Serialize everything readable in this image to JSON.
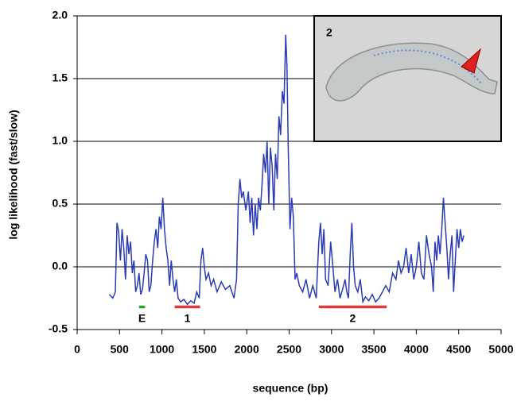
{
  "chart_data": {
    "type": "line",
    "xlabel": "sequence (bp)",
    "ylabel": "log likelihood (fast/slow)",
    "xlim": [
      0,
      5000
    ],
    "ylim": [
      -0.5,
      2.0
    ],
    "xticks": [
      0,
      500,
      1000,
      1500,
      2000,
      2500,
      3000,
      3500,
      4000,
      4500,
      5000
    ],
    "yticks": [
      {
        "value": -0.5,
        "label": "-0.5"
      },
      {
        "value": 0,
        "label": "0.0"
      },
      {
        "value": 0.5,
        "label": "0.5"
      },
      {
        "value": 1,
        "label": "1.0"
      },
      {
        "value": 1.5,
        "label": "1.5"
      },
      {
        "value": 2,
        "label": "2.0"
      }
    ],
    "grid": true,
    "inset_label": "2",
    "annotations": [
      {
        "label": "E",
        "x": [
          730,
          800
        ],
        "y": -0.32,
        "color": "#22aa22"
      },
      {
        "label": "1",
        "x": [
          1150,
          1450
        ],
        "y": -0.32,
        "color": "#e03a3a"
      },
      {
        "label": "2",
        "x": [
          2850,
          3650
        ],
        "y": -0.32,
        "color": "#e03a3a"
      }
    ],
    "series": [
      {
        "color": "#2b3bb5",
        "x": [
          380,
          420,
          450,
          470,
          490,
          510,
          530,
          550,
          570,
          590,
          610,
          630,
          650,
          670,
          690,
          710,
          730,
          750,
          770,
          790,
          810,
          830,
          850,
          870,
          890,
          910,
          930,
          950,
          970,
          990,
          1010,
          1030,
          1050,
          1070,
          1090,
          1110,
          1130,
          1150,
          1170,
          1190,
          1220,
          1260,
          1300,
          1340,
          1380,
          1410,
          1440,
          1460,
          1480,
          1500,
          1520,
          1550,
          1580,
          1610,
          1650,
          1700,
          1750,
          1800,
          1850,
          1880,
          1900,
          1920,
          1940,
          1960,
          1990,
          2020,
          2040,
          2060,
          2080,
          2100,
          2120,
          2140,
          2160,
          2180,
          2200,
          2220,
          2240,
          2260,
          2280,
          2300,
          2320,
          2340,
          2360,
          2380,
          2400,
          2420,
          2440,
          2460,
          2475,
          2490,
          2510,
          2530,
          2550,
          2570,
          2590,
          2620,
          2660,
          2700,
          2740,
          2780,
          2820,
          2850,
          2870,
          2890,
          2910,
          2930,
          2960,
          2990,
          3010,
          3040,
          3070,
          3100,
          3130,
          3160,
          3180,
          3200,
          3220,
          3240,
          3260,
          3280,
          3310,
          3340,
          3370,
          3400,
          3440,
          3480,
          3520,
          3560,
          3600,
          3640,
          3680,
          3720,
          3760,
          3790,
          3820,
          3850,
          3880,
          3910,
          3940,
          3970,
          4000,
          4030,
          4060,
          4090,
          4120,
          4150,
          4180,
          4200,
          4220,
          4240,
          4260,
          4280,
          4300,
          4320,
          4340,
          4360,
          4380,
          4400,
          4420,
          4440,
          4460,
          4480,
          4500,
          4520,
          4540,
          4560
        ],
        "values": [
          -0.22,
          -0.25,
          -0.2,
          0.35,
          0.28,
          0.05,
          0.3,
          0.15,
          -0.1,
          0.25,
          0.1,
          0.2,
          -0.05,
          0.05,
          -0.2,
          -0.15,
          -0.05,
          -0.22,
          -0.18,
          -0.05,
          0.1,
          0.05,
          -0.2,
          -0.15,
          0.05,
          0.2,
          0.3,
          0.15,
          0.4,
          0.3,
          0.55,
          0.3,
          0.15,
          0.05,
          -0.15,
          0.05,
          -0.1,
          -0.2,
          -0.1,
          -0.25,
          -0.28,
          -0.26,
          -0.3,
          -0.27,
          -0.29,
          -0.2,
          -0.25,
          0.05,
          0.15,
          0.0,
          -0.1,
          -0.05,
          -0.15,
          -0.1,
          -0.2,
          -0.12,
          -0.18,
          -0.15,
          -0.25,
          -0.1,
          0.5,
          0.7,
          0.55,
          0.6,
          0.45,
          0.6,
          0.35,
          0.55,
          0.25,
          0.5,
          0.3,
          0.55,
          0.45,
          0.65,
          0.9,
          0.75,
          1.0,
          0.5,
          0.95,
          0.8,
          0.45,
          0.9,
          0.7,
          1.2,
          1.05,
          1.4,
          1.3,
          1.85,
          1.6,
          0.95,
          0.3,
          0.55,
          0.4,
          -0.1,
          -0.05,
          -0.15,
          -0.2,
          -0.1,
          -0.25,
          -0.15,
          -0.25,
          0.2,
          0.35,
          0.1,
          0.3,
          -0.1,
          -0.15,
          0.2,
          0.05,
          -0.2,
          -0.1,
          -0.25,
          -0.18,
          -0.1,
          -0.2,
          -0.25,
          0.1,
          0.35,
          0.0,
          -0.15,
          -0.2,
          -0.1,
          -0.28,
          -0.24,
          -0.27,
          -0.22,
          -0.28,
          -0.25,
          -0.2,
          -0.15,
          -0.2,
          -0.05,
          -0.1,
          0.05,
          -0.05,
          0.0,
          0.15,
          -0.05,
          0.1,
          -0.1,
          0.0,
          0.2,
          -0.05,
          -0.1,
          0.25,
          0.1,
          0.0,
          -0.2,
          0.2,
          0.05,
          0.25,
          0.1,
          0.3,
          0.55,
          0.35,
          0.15,
          -0.1,
          0.1,
          0.25,
          -0.2,
          0.05,
          0.3,
          0.15,
          0.3,
          0.2,
          0.25
        ]
      }
    ]
  }
}
